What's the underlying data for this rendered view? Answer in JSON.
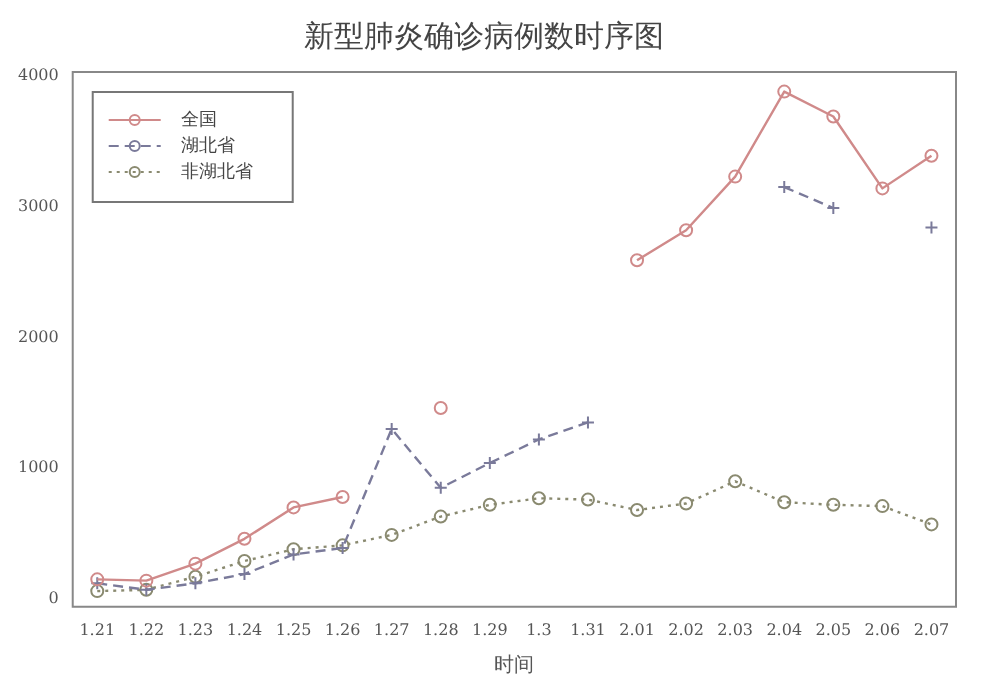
{
  "chart_data": {
    "type": "line",
    "title": "新型肺炎确诊病例数时序图",
    "xlabel": "时间",
    "categories": [
      "1.21",
      "1.22",
      "1.23",
      "1.24",
      "1.25",
      "1.26",
      "1.27",
      "1.28",
      "1.29",
      "1.3",
      "1.31",
      "2.01",
      "2.02",
      "2.03",
      "2.04",
      "2.05",
      "2.06",
      "2.07"
    ],
    "series": [
      {
        "name": "全国",
        "color": "#d08a8a",
        "marker": "circle",
        "line_style": "solid",
        "values": [
          150,
          140,
          270,
          460,
          700,
          780,
          null,
          1460,
          null,
          null,
          null,
          2590,
          2820,
          3230,
          3880,
          3690,
          3140,
          3390
        ]
      },
      {
        "name": "湖北省",
        "color": "#7a7a9a",
        "marker": "cross",
        "line_style": "dashed",
        "values": [
          120,
          70,
          120,
          190,
          340,
          390,
          1300,
          850,
          1040,
          1220,
          1350,
          null,
          null,
          null,
          3150,
          2990,
          null,
          2840
        ]
      },
      {
        "name": "非湖北省",
        "color": "#8a8a70",
        "marker": "circle",
        "line_style": "dotted",
        "values": [
          60,
          70,
          170,
          290,
          380,
          410,
          490,
          630,
          720,
          770,
          760,
          680,
          730,
          900,
          740,
          720,
          710,
          570
        ]
      }
    ],
    "ylim": [
      -60,
      4030
    ],
    "yticks": [
      0,
      1000,
      2000,
      3000,
      4000
    ],
    "grid": false,
    "legend": "top left"
  }
}
